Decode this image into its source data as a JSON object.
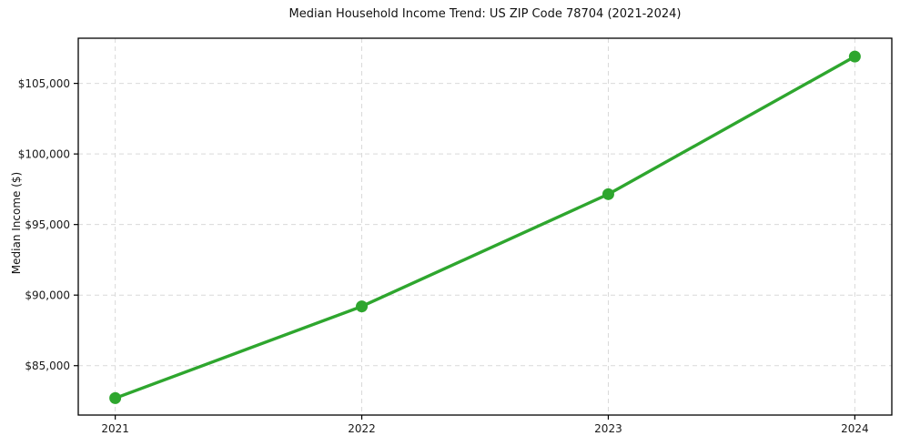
{
  "chart_data": {
    "type": "line",
    "title": "Median Household Income Trend: US ZIP Code 78704 (2021-2024)",
    "xlabel": "",
    "ylabel": "Median Income ($)",
    "x": [
      2021,
      2022,
      2023,
      2024
    ],
    "series": [
      {
        "values": [
          82700,
          89200,
          97150,
          106900
        ]
      }
    ],
    "xticks": [
      {
        "value": 2021,
        "label": "2021"
      },
      {
        "value": 2022,
        "label": "2022"
      },
      {
        "value": 2023,
        "label": "2023"
      },
      {
        "value": 2024,
        "label": "2024"
      }
    ],
    "yticks": [
      {
        "value": 85000,
        "label": "$85,000"
      },
      {
        "value": 90000,
        "label": "$90,000"
      },
      {
        "value": 95000,
        "label": "$95,000"
      },
      {
        "value": 100000,
        "label": "$100,000"
      },
      {
        "value": 105000,
        "label": "$105,000"
      }
    ],
    "xlim": [
      2020.85,
      2024.15
    ],
    "ylim": [
      81500,
      108200
    ],
    "grid": true,
    "legend": "none",
    "marker": "circle",
    "colors": {
      "line": "#2ea62e",
      "marker": "#2ea62e",
      "grid": "#d9d9d9",
      "spine": "#000000",
      "text": "#1a1a1a",
      "background": "#ffffff"
    }
  }
}
